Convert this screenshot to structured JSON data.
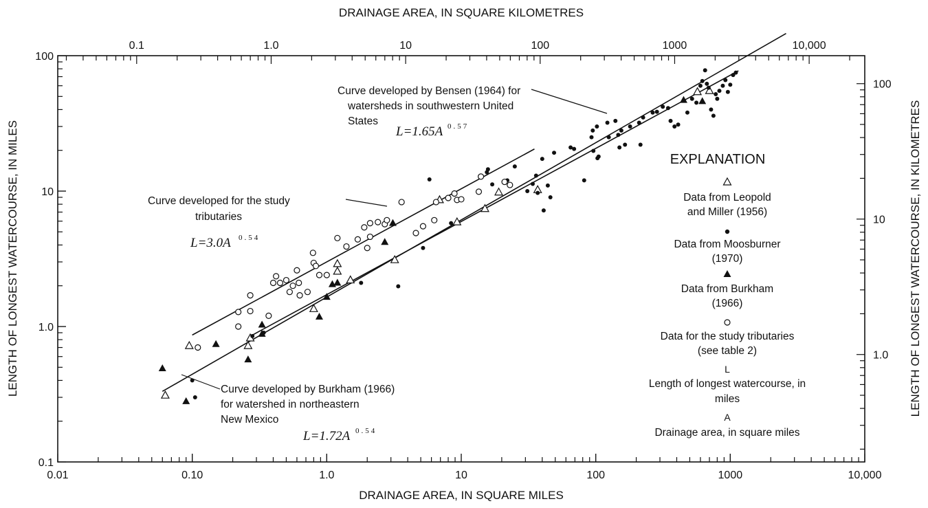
{
  "chart_data": {
    "type": "scatter",
    "x_scale": "log",
    "y_scale": "log",
    "xlabel": "DRAINAGE AREA, IN SQUARE MILES",
    "ylabel": "LENGTH OF LONGEST WATERCOURSE, IN MILES",
    "top_xlabel": "DRAINAGE AREA, IN SQUARE KILOMETRES",
    "right_ylabel": "LENGTH OF LONGEST WATERCOURSE, IN KILOMETRES",
    "xlim": [
      0.01,
      10000
    ],
    "ylim": [
      0.1,
      100
    ],
    "x_ticks": [
      {
        "v": 0.01,
        "label": "0.01"
      },
      {
        "v": 0.1,
        "label": "0.10"
      },
      {
        "v": 1,
        "label": "1.0"
      },
      {
        "v": 10,
        "label": "10"
      },
      {
        "v": 100,
        "label": "100"
      },
      {
        "v": 1000,
        "label": "1000"
      },
      {
        "v": 10000,
        "label": "10,000"
      }
    ],
    "y_ticks": [
      {
        "v": 0.1,
        "label": "0.1"
      },
      {
        "v": 1,
        "label": "1.0"
      },
      {
        "v": 10,
        "label": "10"
      },
      {
        "v": 100,
        "label": "100"
      }
    ],
    "top_ticks": [
      {
        "v": 0.1,
        "label": "0.1"
      },
      {
        "v": 1,
        "label": "1.0"
      },
      {
        "v": 10,
        "label": "10"
      },
      {
        "v": 100,
        "label": "100"
      },
      {
        "v": 1000,
        "label": "1000"
      },
      {
        "v": 10000,
        "label": "10,000"
      }
    ],
    "right_ticks": [
      {
        "v": 1,
        "label": "1.0"
      },
      {
        "v": 10,
        "label": "10"
      },
      {
        "v": 100,
        "label": "100"
      }
    ],
    "series": [
      {
        "name": "Data from Leopold and Miller (1956)",
        "marker": "open-triangle",
        "points": [
          [
            0.063,
            0.31
          ],
          [
            0.095,
            0.72
          ],
          [
            0.26,
            0.72
          ],
          [
            0.27,
            0.82
          ],
          [
            0.8,
            1.35
          ],
          [
            1.2,
            2.9
          ],
          [
            1.2,
            2.55
          ],
          [
            1.5,
            2.2
          ],
          [
            3.2,
            3.1
          ],
          [
            9.3,
            5.9
          ],
          [
            6.9,
            8.6
          ],
          [
            15,
            7.4
          ],
          [
            19,
            9.8
          ],
          [
            37,
            10.2
          ],
          [
            570,
            54
          ],
          [
            700,
            55
          ]
        ]
      },
      {
        "name": "Data from Moosburner (1970)",
        "marker": "filled-circle",
        "points": [
          [
            0.1,
            0.4
          ],
          [
            0.105,
            0.3
          ],
          [
            0.28,
            0.85
          ],
          [
            0.34,
            0.9
          ],
          [
            1.8,
            2.1
          ],
          [
            3.4,
            1.98
          ],
          [
            5.2,
            3.8
          ],
          [
            5.8,
            12.2
          ],
          [
            8.4,
            5.8
          ],
          [
            15.5,
            13.8
          ],
          [
            15.8,
            14.5
          ],
          [
            17,
            11.2
          ],
          [
            22,
            12
          ],
          [
            25,
            15.2
          ],
          [
            31,
            10
          ],
          [
            34,
            11.3
          ],
          [
            36,
            13
          ],
          [
            37,
            9.7
          ],
          [
            40,
            17.3
          ],
          [
            41,
            7.2
          ],
          [
            44,
            11
          ],
          [
            46,
            9
          ],
          [
            49,
            19.2
          ],
          [
            65,
            21
          ],
          [
            69,
            20.5
          ],
          [
            82,
            12
          ],
          [
            93,
            25
          ],
          [
            95,
            28
          ],
          [
            96,
            19.8
          ],
          [
            102,
            30
          ],
          [
            103,
            17.5
          ],
          [
            105,
            18
          ],
          [
            122,
            32
          ],
          [
            125,
            25
          ],
          [
            140,
            33
          ],
          [
            147,
            26
          ],
          [
            150,
            21
          ],
          [
            155,
            28
          ],
          [
            165,
            22
          ],
          [
            180,
            30
          ],
          [
            210,
            32
          ],
          [
            215,
            22
          ],
          [
            225,
            35
          ],
          [
            265,
            38
          ],
          [
            285,
            38.5
          ],
          [
            315,
            42
          ],
          [
            345,
            41
          ],
          [
            360,
            33
          ],
          [
            385,
            30
          ],
          [
            410,
            31
          ],
          [
            480,
            38
          ],
          [
            520,
            48
          ],
          [
            560,
            45
          ],
          [
            600,
            60
          ],
          [
            620,
            65
          ],
          [
            650,
            78
          ],
          [
            670,
            62
          ],
          [
            690,
            58
          ],
          [
            720,
            40
          ],
          [
            750,
            36
          ],
          [
            780,
            52
          ],
          [
            800,
            48
          ],
          [
            830,
            55
          ],
          [
            880,
            60
          ],
          [
            920,
            66
          ],
          [
            960,
            54
          ],
          [
            1000,
            61
          ],
          [
            1050,
            72
          ],
          [
            1100,
            75
          ]
        ]
      },
      {
        "name": "Data from Burkham (1966)",
        "marker": "filled-triangle",
        "points": [
          [
            0.06,
            0.49
          ],
          [
            0.09,
            0.28
          ],
          [
            0.15,
            0.74
          ],
          [
            0.26,
            0.57
          ],
          [
            0.33,
            1.03
          ],
          [
            0.33,
            0.88
          ],
          [
            0.88,
            1.18
          ],
          [
            1.0,
            1.65
          ],
          [
            1.1,
            2.05
          ],
          [
            1.2,
            2.1
          ],
          [
            2.7,
            4.2
          ],
          [
            3.1,
            5.8
          ],
          [
            450,
            47
          ],
          [
            620,
            46
          ]
        ]
      },
      {
        "name": "Data for the study tributaries (see table 2)",
        "marker": "open-circle",
        "points": [
          [
            0.11,
            0.7
          ],
          [
            0.22,
            1.0
          ],
          [
            0.22,
            1.28
          ],
          [
            0.27,
            1.3
          ],
          [
            0.27,
            1.7
          ],
          [
            0.37,
            1.2
          ],
          [
            0.4,
            2.1
          ],
          [
            0.42,
            2.35
          ],
          [
            0.45,
            2.1
          ],
          [
            0.5,
            2.2
          ],
          [
            0.53,
            1.8
          ],
          [
            0.56,
            2.0
          ],
          [
            0.6,
            2.6
          ],
          [
            0.62,
            2.1
          ],
          [
            0.63,
            1.7
          ],
          [
            0.72,
            1.8
          ],
          [
            0.79,
            3.5
          ],
          [
            0.8,
            2.95
          ],
          [
            0.83,
            2.8
          ],
          [
            0.88,
            2.4
          ],
          [
            1.0,
            2.4
          ],
          [
            1.2,
            4.5
          ],
          [
            1.4,
            3.9
          ],
          [
            1.7,
            4.4
          ],
          [
            1.9,
            5.4
          ],
          [
            2.0,
            3.8
          ],
          [
            2.1,
            4.6
          ],
          [
            2.1,
            5.8
          ],
          [
            2.4,
            5.9
          ],
          [
            2.7,
            5.7
          ],
          [
            2.8,
            6.1
          ],
          [
            3.6,
            8.3
          ],
          [
            4.6,
            4.9
          ],
          [
            5.2,
            5.5
          ],
          [
            6.3,
            6.1
          ],
          [
            6.5,
            8.3
          ],
          [
            8.0,
            8.9
          ],
          [
            8.9,
            9.6
          ],
          [
            9.3,
            8.6
          ],
          [
            10.0,
            8.7
          ],
          [
            13.5,
            9.9
          ],
          [
            14.0,
            12.8
          ],
          [
            21,
            11.7
          ],
          [
            23,
            11.1
          ]
        ]
      }
    ],
    "curves": [
      {
        "name": "Curve developed for the study tributaries",
        "a": 3.0,
        "b": 0.54,
        "x_range": [
          0.1,
          35
        ]
      },
      {
        "name": "Curve developed by Bensen (1964) for watersheds in southwestern United States",
        "a": 1.65,
        "b": 0.57,
        "x_range": [
          0.06,
          2600
        ]
      },
      {
        "name": "Curve developed by Burkham (1966) for watershed in northeastern New Mexico",
        "a": 1.72,
        "b": 0.54,
        "x_range": [
          0.28,
          1150
        ]
      }
    ],
    "annotations": {
      "study_l1": "Curve developed for the study",
      "study_l2": "tributaries",
      "study_eq": "L=3.0A",
      "study_exp": "0.54",
      "bensen_l1": "Curve developed by Bensen (1964) for",
      "bensen_l2": "watersheds in southwestern United",
      "bensen_l3": "States",
      "bensen_eq": "L=1.65A",
      "bensen_exp": "0.57",
      "burkham_l1": "Curve developed by Burkham (1966)",
      "burkham_l2": "for watershed in northeastern",
      "burkham_l3": "New Mexico",
      "burkham_eq": "L=1.72A",
      "burkham_exp": "0.54"
    },
    "explanation": {
      "title": "EXPLANATION",
      "leopold_l1": "Data from Leopold",
      "leopold_l2": "and Miller (1956)",
      "moos_l1": "Data from Moosburner",
      "moos_l2": "(1970)",
      "burkham_l1": "Data from Burkham",
      "burkham_l2": "(1966)",
      "study_l1": "Data for the study tributaries",
      "study_l2": "(see table 2)",
      "L_sym": "L",
      "L_l1": "Length of longest watercourse, in",
      "L_l2": "miles",
      "A_sym": "A",
      "A_l1": "Drainage area, in square miles"
    }
  }
}
